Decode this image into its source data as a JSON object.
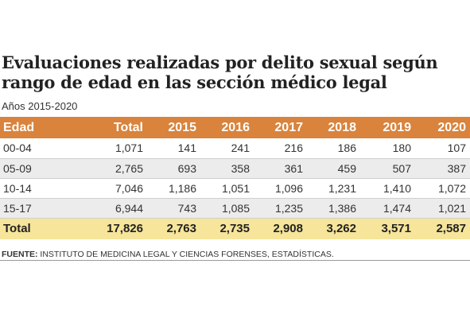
{
  "title_line1": "Evaluaciones realizadas por delito sexual según",
  "title_line2": "rango de edad en las sección médico legal",
  "subtitle": "Años 2015-2020",
  "columns": [
    "Edad",
    "Total",
    "2015",
    "2016",
    "2017",
    "2018",
    "2019",
    "2020"
  ],
  "rows": [
    [
      "00-04",
      "1,071",
      "141",
      "241",
      "216",
      "186",
      "180",
      "107"
    ],
    [
      "05-09",
      "2,765",
      "693",
      "358",
      "361",
      "459",
      "507",
      "387"
    ],
    [
      "10-14",
      "7,046",
      "1,186",
      "1,051",
      "1,096",
      "1,231",
      "1,410",
      "1,072"
    ],
    [
      "15-17",
      "6,944",
      "743",
      "1,085",
      "1,235",
      "1,386",
      "1,474",
      "1,021"
    ]
  ],
  "total_row": [
    "Total",
    "17,826",
    "2,763",
    "2,735",
    "2,908",
    "3,262",
    "3,571",
    "2,587"
  ],
  "source_label": "FUENTE:",
  "source_text": "INSTITUTO DE MEDICINA LEGAL Y CIENCIAS FORENSES, ESTADÍSTICAS.",
  "colors": {
    "header_bg": "#d9833c",
    "stripe_bg": "#ececec",
    "total_bg": "#f6e59a",
    "text": "#222222"
  }
}
